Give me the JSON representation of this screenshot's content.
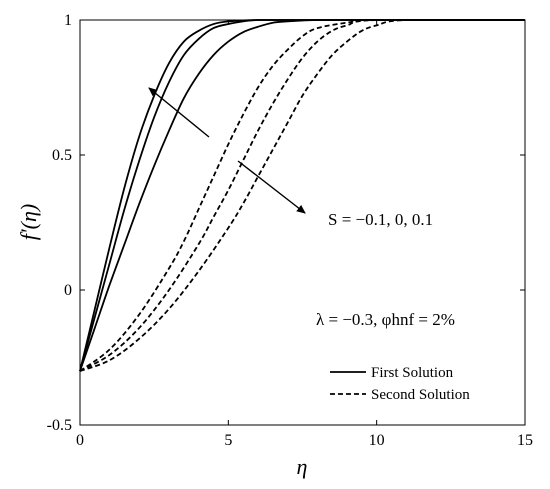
{
  "chart_data": {
    "type": "line",
    "xlabel": "η",
    "ylabel": "f'(η)",
    "xlim": [
      0,
      15
    ],
    "ylim": [
      -0.5,
      1
    ],
    "x_ticks": [
      "0",
      "5",
      "10",
      "15"
    ],
    "y_ticks": [
      "-0.5",
      "0",
      "0.5",
      "1"
    ],
    "x_tick_values": [
      0,
      5,
      10,
      15
    ],
    "y_tick_values": [
      -0.5,
      0,
      0.5,
      1
    ],
    "grid": false,
    "legend_position": "lower-right",
    "legend": [
      {
        "label": "First Solution",
        "style": "solid"
      },
      {
        "label": "Second Solution",
        "style": "dashed"
      }
    ],
    "annotations": {
      "parameter": "S = −0.1, 0, 0.1",
      "conditions": "λ = −0.3, φhnf = 2%"
    },
    "series": [
      {
        "style": "solid",
        "x": [
          0,
          0.5,
          1,
          1.5,
          2,
          2.5,
          3,
          3.5,
          4,
          4.5,
          5,
          6,
          7,
          8,
          10,
          15
        ],
        "y": [
          -0.3,
          -0.07,
          0.16,
          0.38,
          0.57,
          0.72,
          0.84,
          0.92,
          0.96,
          0.985,
          0.995,
          1,
          1,
          1,
          1,
          1
        ]
      },
      {
        "style": "solid",
        "x": [
          0,
          0.5,
          1,
          1.5,
          2,
          2.5,
          3,
          3.5,
          4,
          4.5,
          5,
          5.5,
          6,
          7,
          8,
          10,
          15
        ],
        "y": [
          -0.3,
          -0.1,
          0.1,
          0.3,
          0.48,
          0.64,
          0.77,
          0.87,
          0.93,
          0.97,
          0.985,
          0.995,
          1,
          1,
          1,
          1,
          1
        ]
      },
      {
        "style": "solid",
        "x": [
          0,
          0.5,
          1,
          1.5,
          2,
          2.5,
          3,
          3.5,
          4,
          4.5,
          5,
          5.5,
          6,
          6.5,
          7,
          8,
          10,
          15
        ],
        "y": [
          -0.3,
          -0.14,
          0.02,
          0.17,
          0.32,
          0.46,
          0.59,
          0.71,
          0.8,
          0.87,
          0.92,
          0.955,
          0.975,
          0.99,
          0.995,
          1,
          1,
          1
        ]
      },
      {
        "style": "dashed",
        "x": [
          0,
          1,
          2,
          3,
          3.5,
          4,
          4.5,
          5,
          5.5,
          6,
          6.5,
          7,
          7.5,
          8,
          9,
          10,
          15
        ],
        "y": [
          -0.3,
          -0.22,
          -0.09,
          0.08,
          0.18,
          0.3,
          0.42,
          0.54,
          0.65,
          0.75,
          0.83,
          0.89,
          0.94,
          0.97,
          0.99,
          1,
          1
        ]
      },
      {
        "style": "dashed",
        "x": [
          0,
          1,
          2,
          3,
          4,
          4.5,
          5,
          5.5,
          6,
          6.5,
          7,
          7.5,
          8,
          8.5,
          9,
          10,
          15
        ],
        "y": [
          -0.3,
          -0.24,
          -0.14,
          0.0,
          0.17,
          0.27,
          0.37,
          0.48,
          0.59,
          0.69,
          0.78,
          0.86,
          0.92,
          0.96,
          0.98,
          1,
          1
        ]
      },
      {
        "style": "dashed",
        "x": [
          0,
          1,
          2,
          3,
          4,
          5,
          5.5,
          6,
          6.5,
          7,
          7.5,
          8,
          8.5,
          9,
          9.5,
          10,
          11,
          15
        ],
        "y": [
          -0.3,
          -0.26,
          -0.18,
          -0.07,
          0.07,
          0.23,
          0.32,
          0.42,
          0.52,
          0.62,
          0.72,
          0.8,
          0.87,
          0.92,
          0.96,
          0.98,
          1,
          1
        ]
      }
    ]
  }
}
